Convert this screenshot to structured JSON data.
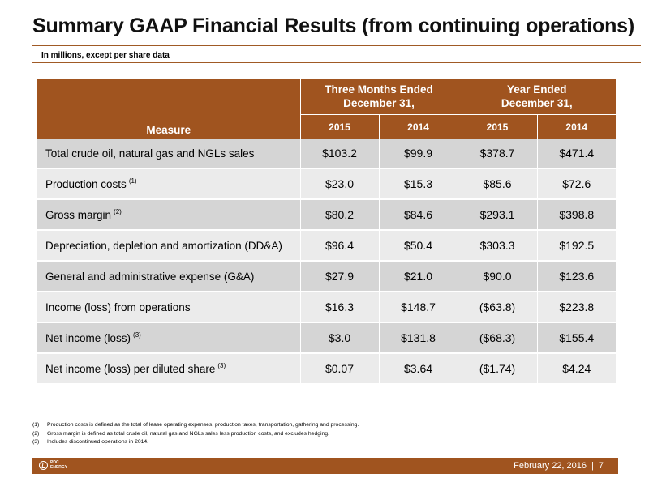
{
  "header": {
    "title": "Summary GAAP Financial Results (from continuing operations)",
    "subtitle": "In millions, except per share data"
  },
  "table": {
    "measure_header": "Measure",
    "group_headers": [
      "Three Months Ended\nDecember 31,",
      "Year Ended\nDecember 31,"
    ],
    "year_headers": [
      "2015",
      "2014",
      "2015",
      "2014"
    ],
    "rows": [
      {
        "label": "Total crude oil, natural gas and NGLs sales",
        "note": "",
        "values": [
          "$103.2",
          "$99.9",
          "$378.7",
          "$471.4"
        ]
      },
      {
        "label": "Production costs",
        "note": "(1)",
        "values": [
          "$23.0",
          "$15.3",
          "$85.6",
          "$72.6"
        ]
      },
      {
        "label": "Gross margin",
        "note": "(2)",
        "values": [
          "$80.2",
          "$84.6",
          "$293.1",
          "$398.8"
        ]
      },
      {
        "label": "Depreciation, depletion and amortization (DD&A)",
        "note": "",
        "values": [
          "$96.4",
          "$50.4",
          "$303.3",
          "$192.5"
        ]
      },
      {
        "label": "General and administrative expense (G&A)",
        "note": "",
        "values": [
          "$27.9",
          "$21.0",
          "$90.0",
          "$123.6"
        ]
      },
      {
        "label": "Income (loss) from operations",
        "note": "",
        "values": [
          "$16.3",
          "$148.7",
          "($63.8)",
          "$223.8"
        ]
      },
      {
        "label": "Net income (loss)",
        "note": "(3)",
        "values": [
          "$3.0",
          "$131.8",
          "($68.3)",
          "$155.4"
        ]
      },
      {
        "label": "Net income (loss) per diluted share",
        "note": "(3)",
        "values": [
          "$0.07",
          "$3.64",
          "($1.74)",
          "$4.24"
        ]
      }
    ]
  },
  "footnotes": [
    {
      "num": "(1)",
      "text": "Production costs is defined as the total of lease operating expenses, production taxes, transportation, gathering and processing."
    },
    {
      "num": "(2)",
      "text": "Gross margin is defined as total crude oil, natural gas and NGLs sales less production costs, and excludes hedging."
    },
    {
      "num": "(3)",
      "text": "Includes discontinued operations in 2014."
    }
  ],
  "footer": {
    "logo_line1": "PDC",
    "logo_line2": "ENERGY",
    "date": "February 22, 2016",
    "separator": "|",
    "page": "7"
  },
  "colors": {
    "brand_brown": "#a0541f",
    "row_dark": "#d5d5d5",
    "row_light": "#ebebeb"
  }
}
